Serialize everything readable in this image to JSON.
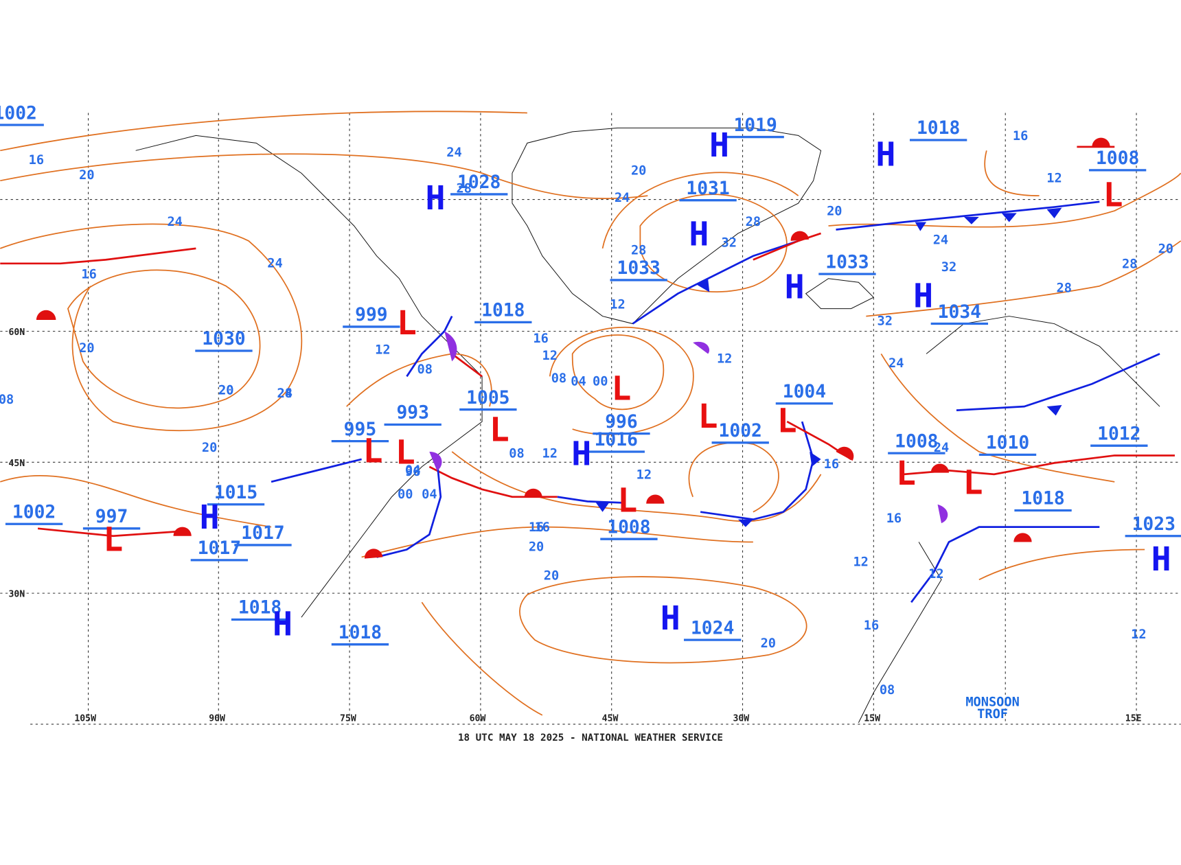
{
  "map": {
    "footer": "18 UTC MAY 18 2025 - NATIONAL WEATHER SERVICE",
    "annotation": [
      "MONSOON",
      "TROF"
    ],
    "latitude_labels": [
      "60N",
      "45N",
      "30N"
    ],
    "longitude_labels": [
      "105W",
      "90W",
      "75W",
      "60W",
      "45W",
      "30W",
      "15W",
      "15E"
    ],
    "centers": [
      {
        "symbol": "H",
        "pressure": "1028"
      },
      {
        "symbol": "H",
        "pressure": "1031"
      },
      {
        "symbol": "H",
        "pressure": "1019"
      },
      {
        "symbol": "H",
        "pressure": "1018"
      },
      {
        "pressure": "1033"
      },
      {
        "symbol": "H",
        "pressure": "1033"
      },
      {
        "symbol": "H",
        "pressure": "1034"
      },
      {
        "symbol": "L",
        "pressure": "999"
      },
      {
        "pressure": "1018"
      },
      {
        "pressure": "1030"
      },
      {
        "symbol": "L",
        "pressure": "1005"
      },
      {
        "symbol": "L",
        "pressure": "993"
      },
      {
        "symbol": "L",
        "pressure": "995"
      },
      {
        "symbol": "L",
        "pressure": "996"
      },
      {
        "symbol": "H",
        "pressure": "1016"
      },
      {
        "symbol": "L",
        "pressure": "1004"
      },
      {
        "symbol": "L",
        "pressure": "1002"
      },
      {
        "symbol": "L",
        "pressure": "1008"
      },
      {
        "symbol": "L",
        "pressure": "1008"
      },
      {
        "symbol": "L",
        "pressure": "1010"
      },
      {
        "pressure": "1012"
      },
      {
        "pressure": "1018"
      },
      {
        "symbol": "H",
        "pressure": "1023"
      },
      {
        "symbol": "H",
        "pressure": "1015"
      },
      {
        "pressure": "1017"
      },
      {
        "pressure": "1017"
      },
      {
        "symbol": "H",
        "pressure": "1018"
      },
      {
        "pressure": "1018"
      },
      {
        "symbol": "H",
        "pressure": "1024"
      },
      {
        "pressure": "1002"
      },
      {
        "symbol": "L",
        "pressure": "1008"
      },
      {
        "pressure": "1002"
      },
      {
        "symbol": "L",
        "pressure": "997"
      }
    ],
    "isobar_labels": [
      "16",
      "20",
      "24",
      "24",
      "24",
      "20",
      "24",
      "28",
      "20",
      "24",
      "28",
      "32",
      "28",
      "32",
      "20",
      "24",
      "28",
      "32",
      "16",
      "20",
      "24",
      "28",
      "20",
      "12",
      "08",
      "04",
      "00",
      "12",
      "08",
      "12",
      "16",
      "20",
      "20",
      "28",
      "24",
      "08",
      "04",
      "00",
      "96",
      "08",
      "12",
      "16",
      "20",
      "12",
      "16",
      "20",
      "12",
      "16",
      "12",
      "12",
      "16",
      "20",
      "16",
      "12",
      "08",
      "04",
      "12",
      "16"
    ]
  }
}
